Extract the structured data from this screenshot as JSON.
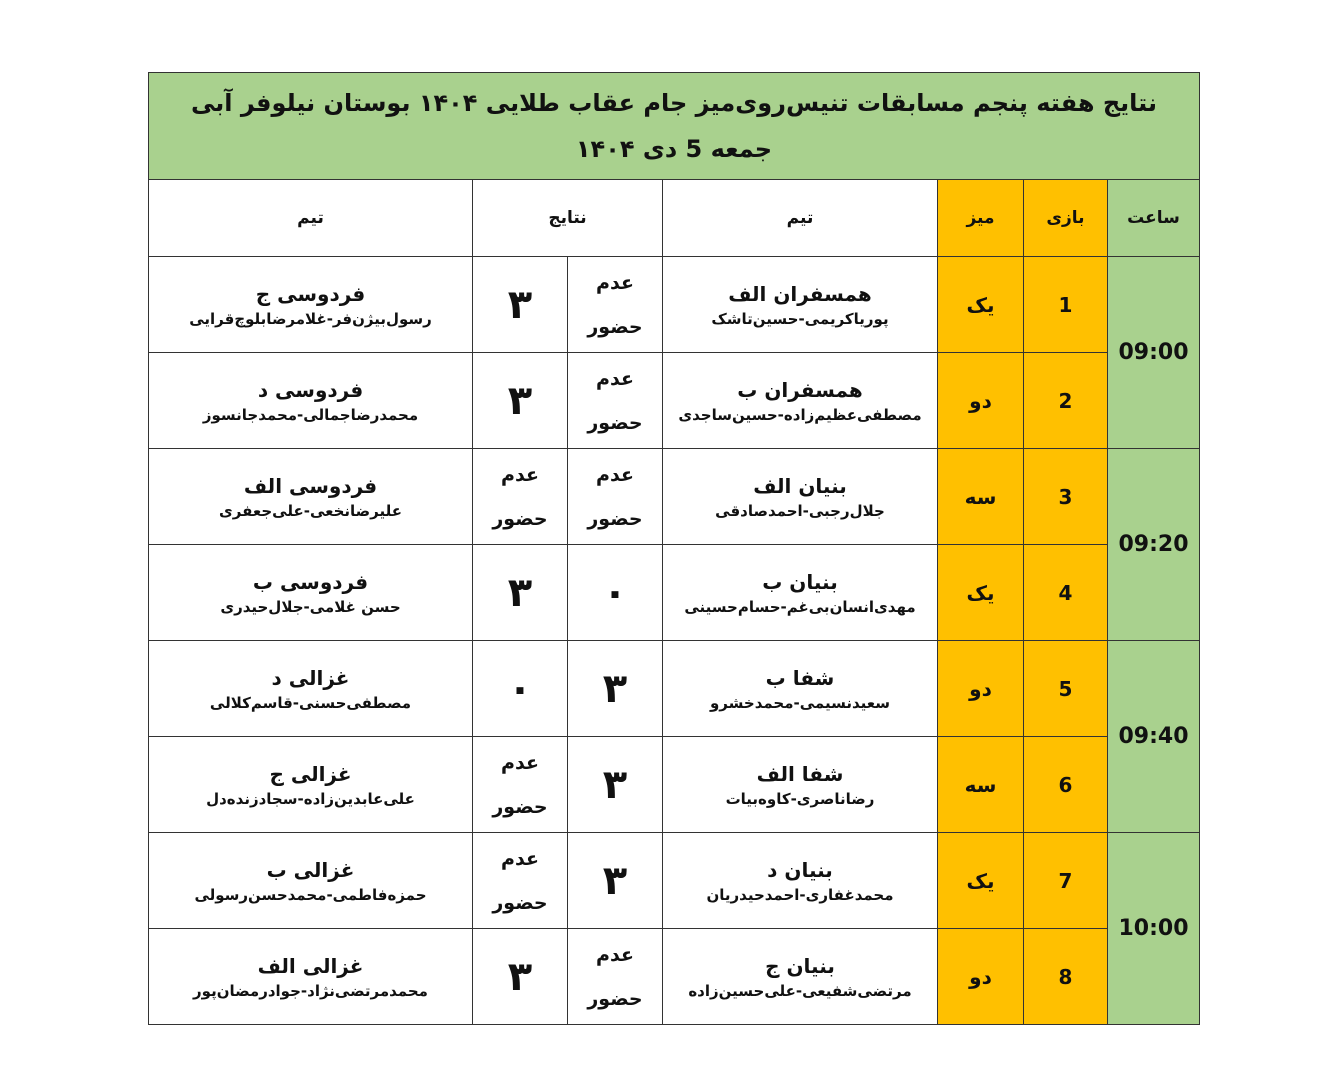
{
  "title": {
    "line1": "نتایج هفته پنجم مسابقات تنیس‌روی‌میز جام عقاب طلایی ۱۴۰۴ بوستان نیلوفر آبی",
    "line2": "جمعه 5 دی ۱۴۰۴"
  },
  "headers": {
    "time": "ساعت",
    "game": "بازی",
    "table": "میز",
    "team1": "تیم",
    "results": "نتایج",
    "team2": "تیم"
  },
  "colors": {
    "header_bg": "#a9d18e",
    "highlight": "#ffc000",
    "title_text": "#1f3864"
  },
  "times": [
    "09:00",
    "09:20",
    "09:40",
    "10:00"
  ],
  "rows": [
    {
      "game": "1",
      "table": "یک",
      "team1": "همسفران الف",
      "players1": "پوریاکریمی-حسین‌تاشک",
      "result1": "عدم حضور",
      "result2": "۳",
      "team2": "فردوسی ج",
      "players2": "رسول‌بیژن‌فر-غلامرضابلوچ‌قرایی"
    },
    {
      "game": "2",
      "table": "دو",
      "team1": "همسفران ب",
      "players1": "مصطفی‌عظیم‌زاده-حسین‌ساجدی",
      "result1": "عدم حضور",
      "result2": "۳",
      "team2": "فردوسی د",
      "players2": "محمدرضاجمالی-محمدجانسوز"
    },
    {
      "game": "3",
      "table": "سه",
      "team1": "بنیان الف",
      "players1": "جلال‌رجبی-احمدصادقی",
      "result1": "عدم حضور",
      "result2": "عدم حضور",
      "team2": "فردوسی الف",
      "players2": "علیرضانخعی-علی‌جعفری"
    },
    {
      "game": "4",
      "table": "یک",
      "team1": "بنیان ب",
      "players1": "مهدی‌انسان‌بی‌غم-حسام‌حسینی",
      "result1": "۰",
      "result2": "۳",
      "team2": "فردوسی ب",
      "players2": "حسن غلامی-جلال‌حیدری"
    },
    {
      "game": "5",
      "table": "دو",
      "team1": "شفا ب",
      "players1": "سعیدنسیمی-محمدخشرو",
      "result1": "۳",
      "result2": "۰",
      "team2": "غزالی د",
      "players2": "مصطفی‌حسنی-قاسم‌کلالی"
    },
    {
      "game": "6",
      "table": "سه",
      "team1": "شفا الف",
      "players1": "رضاناصری-کاوه‌بیات",
      "result1": "۳",
      "result2": "عدم حضور",
      "team2": "غزالی ج",
      "players2": "علی‌عابدین‌زاده-سجادزنده‌دل"
    },
    {
      "game": "7",
      "table": "یک",
      "team1": "بنیان د",
      "players1": "محمدغفاری-احمدحیدریان",
      "result1": "۳",
      "result2": "عدم حضور",
      "team2": "غزالی ب",
      "players2": "حمزه‌فاطمی-محمدحسن‌رسولی"
    },
    {
      "game": "8",
      "table": "دو",
      "team1": "بنیان ج",
      "players1": "مرتضی‌شفیعی-علی‌حسین‌زاده",
      "result1": "عدم حضور",
      "result2": "۳",
      "team2": "غزالی الف",
      "players2": "محمدمرتضی‌نژاد-جوادرمضان‌پور"
    }
  ]
}
